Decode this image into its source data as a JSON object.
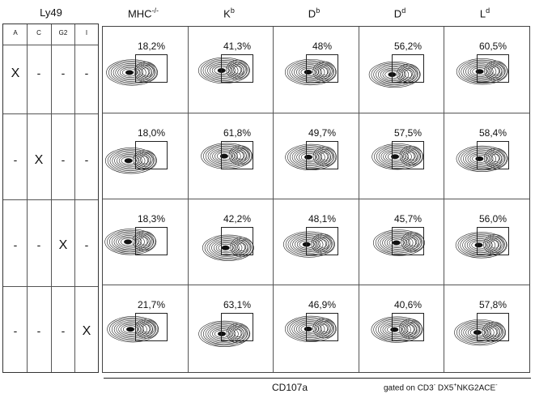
{
  "ly49": {
    "title": "Ly49",
    "columns": [
      "A",
      "C",
      "G2",
      "I"
    ],
    "rows": [
      [
        "X",
        "-",
        "-",
        "-"
      ],
      [
        "-",
        "X",
        "-",
        "-"
      ],
      [
        "-",
        "-",
        "X",
        "-"
      ],
      [
        "-",
        "-",
        "-",
        "X"
      ]
    ]
  },
  "columns": [
    {
      "base": "MHC",
      "sup": "-/-"
    },
    {
      "base": "K",
      "sup": "b"
    },
    {
      "base": "D",
      "sup": "b"
    },
    {
      "base": "D",
      "sup": "d"
    },
    {
      "base": "L",
      "sup": "d"
    }
  ],
  "percentages": [
    [
      "18,2%",
      "41,3%",
      "48%",
      "56,2%",
      "60,5%"
    ],
    [
      "18,0%",
      "61,8%",
      "49,7%",
      "57,5%",
      "58,4%"
    ],
    [
      "18,3%",
      "42,2%",
      "48,1%",
      "45,7%",
      "56,0%"
    ],
    [
      "21,7%",
      "63,1%",
      "46,9%",
      "40,6%",
      "57,8%"
    ]
  ],
  "axis_label": "CD107a",
  "gating": {
    "prefix": "gated on CD3",
    "sup1": "-",
    "mid": " DX5",
    "sup2": "+",
    "mid2": "NKG2ACE",
    "sup3": "-"
  }
}
